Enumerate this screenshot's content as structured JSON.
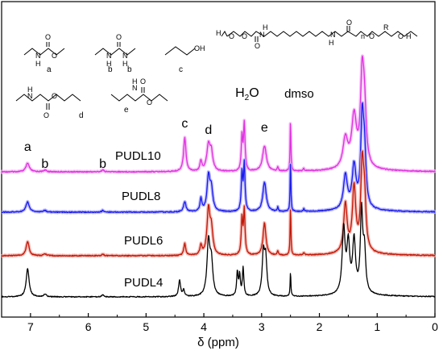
{
  "chart_data": {
    "type": "line",
    "title": "",
    "xlabel": "δ (ppm)",
    "ylabel": "",
    "xlim": [
      7.5,
      0
    ],
    "x_ticks": [
      7,
      6,
      5,
      4,
      3,
      2,
      1,
      0
    ],
    "x_tick_labels": [
      "7",
      "6",
      "5",
      "4",
      "3",
      "2",
      "1",
      "0"
    ],
    "grid": false,
    "baseline_noise": true,
    "series": [
      {
        "name": "PUDL10",
        "color": "#e030e0",
        "glow": "#f4b0f4",
        "baseline": 0.1,
        "peaks": [
          [
            7.05,
            0.1,
            0.035
          ],
          [
            6.75,
            0.02,
            0.03
          ],
          [
            5.75,
            0.025,
            0.02
          ],
          [
            4.33,
            0.4,
            0.025
          ],
          [
            4.05,
            0.12,
            0.02
          ],
          [
            3.92,
            0.3,
            0.035
          ],
          [
            3.87,
            0.2,
            0.03
          ],
          [
            3.34,
            0.4,
            0.015
          ],
          [
            3.3,
            0.55,
            0.015
          ],
          [
            2.95,
            0.3,
            0.04
          ],
          [
            2.72,
            0.05,
            0.012
          ],
          [
            2.5,
            0.6,
            0.008
          ],
          [
            2.27,
            0.03,
            0.012
          ],
          [
            1.55,
            0.35,
            0.05
          ],
          [
            1.4,
            0.6,
            0.05
          ],
          [
            1.26,
            1.0,
            0.035
          ],
          [
            1.22,
            0.6,
            0.035
          ]
        ]
      },
      {
        "name": "PUDL8",
        "color": "#1a1aee",
        "glow": "#a8a8ff",
        "baseline": 0.1,
        "peaks": [
          [
            7.05,
            0.12,
            0.035
          ],
          [
            6.75,
            0.02,
            0.03
          ],
          [
            5.75,
            0.02,
            0.02
          ],
          [
            4.33,
            0.12,
            0.025
          ],
          [
            4.05,
            0.15,
            0.02
          ],
          [
            3.92,
            0.4,
            0.03
          ],
          [
            3.87,
            0.25,
            0.03
          ],
          [
            3.34,
            0.45,
            0.015
          ],
          [
            3.3,
            0.55,
            0.015
          ],
          [
            2.95,
            0.35,
            0.035
          ],
          [
            2.72,
            0.05,
            0.012
          ],
          [
            2.5,
            0.6,
            0.008
          ],
          [
            2.27,
            0.03,
            0.012
          ],
          [
            1.55,
            0.4,
            0.04
          ],
          [
            1.4,
            0.5,
            0.04
          ],
          [
            1.26,
            1.0,
            0.03
          ],
          [
            1.22,
            0.6,
            0.03
          ]
        ]
      },
      {
        "name": "PUDL6",
        "color": "#c01808",
        "glow": "#f4a8a0",
        "baseline": 0.1,
        "peaks": [
          [
            7.05,
            0.18,
            0.03
          ],
          [
            6.75,
            0.02,
            0.03
          ],
          [
            5.75,
            0.02,
            0.02
          ],
          [
            4.33,
            0.15,
            0.02
          ],
          [
            4.05,
            0.12,
            0.02
          ],
          [
            3.92,
            0.55,
            0.03
          ],
          [
            3.87,
            0.3,
            0.03
          ],
          [
            3.34,
            0.45,
            0.015
          ],
          [
            3.3,
            0.55,
            0.015
          ],
          [
            2.95,
            0.4,
            0.03
          ],
          [
            2.72,
            0.05,
            0.012
          ],
          [
            2.5,
            0.6,
            0.008
          ],
          [
            2.27,
            0.03,
            0.012
          ],
          [
            1.55,
            0.6,
            0.035
          ],
          [
            1.4,
            0.8,
            0.035
          ],
          [
            1.26,
            1.0,
            0.03
          ],
          [
            1.22,
            0.6,
            0.03
          ]
        ]
      },
      {
        "name": "PUDL4",
        "color": "#000000",
        "glow": "",
        "baseline": 0.1,
        "peaks": [
          [
            7.05,
            0.35,
            0.03
          ],
          [
            6.75,
            0.03,
            0.03
          ],
          [
            5.75,
            0.025,
            0.02
          ],
          [
            4.42,
            0.2,
            0.02
          ],
          [
            4.35,
            0.08,
            0.02
          ],
          [
            3.92,
            0.65,
            0.03
          ],
          [
            3.87,
            0.4,
            0.03
          ],
          [
            3.42,
            0.3,
            0.015
          ],
          [
            3.38,
            0.25,
            0.015
          ],
          [
            3.32,
            0.35,
            0.015
          ],
          [
            2.97,
            0.5,
            0.025
          ],
          [
            2.93,
            0.45,
            0.025
          ],
          [
            2.5,
            0.3,
            0.008
          ],
          [
            1.58,
            0.8,
            0.03
          ],
          [
            1.5,
            0.6,
            0.03
          ],
          [
            1.4,
            0.65,
            0.03
          ],
          [
            1.27,
            1.0,
            0.025
          ],
          [
            1.22,
            0.5,
            0.025
          ]
        ]
      }
    ],
    "annotations": [
      {
        "text": "a",
        "x": 7.05
      },
      {
        "text": "b",
        "x": 6.75
      },
      {
        "text": "b",
        "x": 5.75
      },
      {
        "text": "c",
        "x": 4.33
      },
      {
        "text": "d",
        "x": 3.92
      },
      {
        "text": "e",
        "x": 2.95
      },
      {
        "text": "H",
        "sub": "2",
        "tail": "O",
        "x": 3.25
      },
      {
        "text": "dmso",
        "x": 2.35
      }
    ]
  },
  "structures": {
    "main_polymer": "H[O-R-O-C(=O)-NH-(CH2)6-NH-C(=O)]n-O-R-OH",
    "labels": [
      "a",
      "b",
      "b",
      "c",
      "d",
      "e"
    ]
  }
}
